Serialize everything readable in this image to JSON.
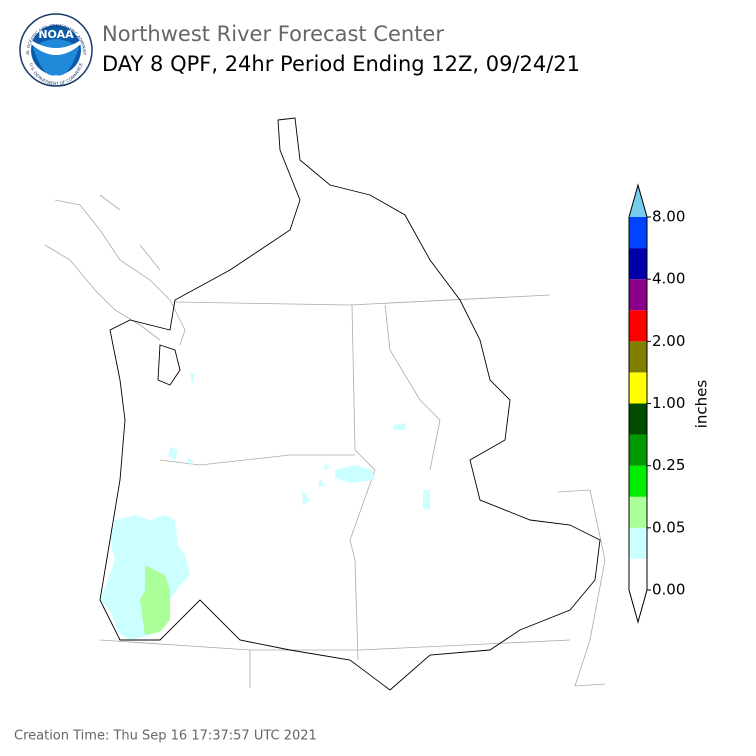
{
  "header": {
    "logo_text": "NOAA",
    "logo_ring_top": "NATIONAL OCEANIC AND ATMOSPHERIC ADMINISTRATION",
    "logo_ring_bottom": "U.S. DEPARTMENT OF COMMERCE",
    "title": "Northwest River Forecast Center",
    "subtitle": "DAY 8 QPF, 24hr Period Ending 12Z, 09/24/21"
  },
  "legend": {
    "label": "inches",
    "colors": [
      "#ffffff",
      "#ccffff",
      "#aaff99",
      "#00ee00",
      "#009900",
      "#004d00",
      "#ffff00",
      "#808000",
      "#ff0000",
      "#8b008b",
      "#0000aa",
      "#0044ff"
    ],
    "under_color": "#ffffff",
    "over_color": "#77ccee",
    "ticks": [
      {
        "value": 0,
        "label": "0.00"
      },
      {
        "value": 0.05,
        "label": "0.05"
      },
      {
        "value": 0.25,
        "label": "0.25"
      },
      {
        "value": 1,
        "label": "1.00"
      },
      {
        "value": 2,
        "label": "2.00"
      },
      {
        "value": 4,
        "label": "4.00"
      },
      {
        "value": 8,
        "label": "8.00"
      }
    ]
  },
  "footer": {
    "creation_time": "Creation Time: Thu Sep 16 17:37:57 UTC 2021"
  }
}
